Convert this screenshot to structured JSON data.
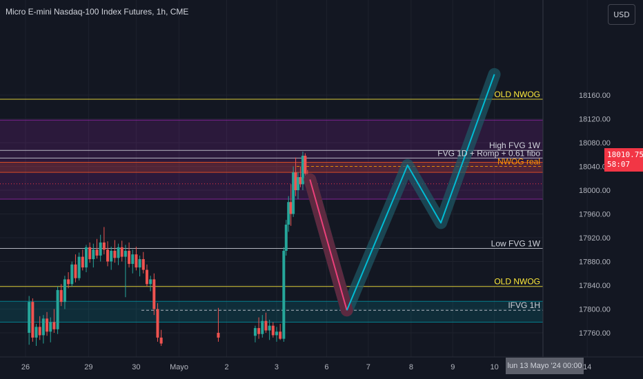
{
  "header": {
    "title": "Micro E-mini Nasdaq-100 Index Futures, 1h, CME"
  },
  "toolbar": {
    "currency_label": "USD"
  },
  "price_tag": {
    "price": "18010.75",
    "countdown": "58:07"
  },
  "crosshair": {
    "date_label": "lun 13 Mayo '24   00:00"
  },
  "colors": {
    "background": "#131722",
    "up": "#26a69a",
    "down": "#ef5350",
    "projection": "#00bcd4",
    "zone_purple": "#9c27b0",
    "zone_teal": "#0097a7",
    "price_tag": "#f23645",
    "nwog_label": "#ffeb3b",
    "nwog_real_label": "#ff9800"
  },
  "chart_data": {
    "type": "candlestick",
    "symbol": "Micro E-mini Nasdaq-100 Index Futures",
    "interval": "1h",
    "exchange": "CME",
    "ylim": [
      17730,
      18190
    ],
    "y_ticks": [
      17760,
      17800,
      17840,
      17880,
      17920,
      17960,
      18000,
      18040,
      18080,
      18120,
      18160
    ],
    "y_tick_labels": [
      "17760.00",
      "17800.00",
      "17840.00",
      "17880.00",
      "17920.00",
      "17960.00",
      "18000.00",
      "18040.00",
      "18080.00",
      "18120.00",
      "18160.00"
    ],
    "x_ticks": [
      {
        "label": "26",
        "t": 0.35
      },
      {
        "label": "29",
        "t": 3.0
      },
      {
        "label": "30",
        "t": 5.0
      },
      {
        "label": "Mayo",
        "t": 6.8
      },
      {
        "label": "2",
        "t": 8.8
      },
      {
        "label": "3",
        "t": 10.9
      },
      {
        "label": "6",
        "t": 13.0
      },
      {
        "label": "7",
        "t": 14.75
      },
      {
        "label": "8",
        "t": 16.55
      },
      {
        "label": "9",
        "t": 18.3
      },
      {
        "label": "10",
        "t": 20.05
      },
      {
        "label": "14",
        "t": 23.95
      }
    ],
    "current_price": 18010.75,
    "levels": [
      {
        "label": "OLD NWOG",
        "price": 18153,
        "color": "#ffeb3b",
        "style": "solid",
        "label_side": "right"
      },
      {
        "label": "High FVG 1W",
        "price": 18067,
        "color": "#d1d4dc",
        "style": "solid",
        "label_side": "right"
      },
      {
        "label": "FVG 1D + Romp + 0.61 fibo",
        "price": 18054,
        "color": "#d1d4dc",
        "style": "solid",
        "label_side": "right"
      },
      {
        "label": "NWOG real",
        "price": 18040,
        "color": "#ff9800",
        "style": "dashed",
        "label_side": "right"
      },
      {
        "label": "Low FVG 1W",
        "price": 17902,
        "color": "#d1d4dc",
        "style": "solid",
        "label_side": "right"
      },
      {
        "label": "OLD NWOG",
        "price": 17838,
        "color": "#ffeb3b",
        "style": "solid",
        "label_side": "right"
      },
      {
        "label": "IFVG 1H",
        "price": 17798,
        "color": "#d1d4dc",
        "style": "dashed",
        "label_side": "right"
      }
    ],
    "zones": [
      {
        "from": 17985,
        "to": 18118,
        "color": "#9c27b0"
      },
      {
        "from": 18030,
        "to": 18047,
        "color": "#ff5722"
      },
      {
        "from": 17778,
        "to": 17813,
        "color": "#0097a7"
      }
    ],
    "projection": [
      {
        "t": 12.3,
        "price": 18018
      },
      {
        "t": 13.85,
        "price": 17798
      },
      {
        "t": 16.4,
        "price": 18042
      },
      {
        "t": 17.8,
        "price": 17945
      },
      {
        "t": 20.05,
        "price": 18195
      }
    ],
    "projection_start_segment_color": "#ec407a",
    "candles": [
      {
        "t": 0.5,
        "o": 17760,
        "h": 17822,
        "l": 17740,
        "c": 17812
      },
      {
        "t": 0.65,
        "o": 17812,
        "h": 17818,
        "l": 17745,
        "c": 17752
      },
      {
        "t": 0.8,
        "o": 17752,
        "h": 17775,
        "l": 17738,
        "c": 17770
      },
      {
        "t": 0.95,
        "o": 17770,
        "h": 17788,
        "l": 17748,
        "c": 17756
      },
      {
        "t": 1.1,
        "o": 17756,
        "h": 17790,
        "l": 17742,
        "c": 17784
      },
      {
        "t": 1.25,
        "o": 17784,
        "h": 17795,
        "l": 17755,
        "c": 17762
      },
      {
        "t": 1.4,
        "o": 17762,
        "h": 17786,
        "l": 17744,
        "c": 17778
      },
      {
        "t": 1.55,
        "o": 17778,
        "h": 17800,
        "l": 17760,
        "c": 17766
      },
      {
        "t": 1.7,
        "o": 17766,
        "h": 17838,
        "l": 17758,
        "c": 17832
      },
      {
        "t": 1.85,
        "o": 17832,
        "h": 17842,
        "l": 17805,
        "c": 17812
      },
      {
        "t": 2.0,
        "o": 17812,
        "h": 17856,
        "l": 17800,
        "c": 17850
      },
      {
        "t": 2.15,
        "o": 17850,
        "h": 17862,
        "l": 17835,
        "c": 17842
      },
      {
        "t": 2.3,
        "o": 17842,
        "h": 17880,
        "l": 17838,
        "c": 17875
      },
      {
        "t": 2.45,
        "o": 17875,
        "h": 17892,
        "l": 17845,
        "c": 17852
      },
      {
        "t": 2.6,
        "o": 17852,
        "h": 17895,
        "l": 17848,
        "c": 17888
      },
      {
        "t": 2.75,
        "o": 17888,
        "h": 17900,
        "l": 17865,
        "c": 17870
      },
      {
        "t": 2.9,
        "o": 17870,
        "h": 17908,
        "l": 17862,
        "c": 17904
      },
      {
        "t": 3.05,
        "o": 17904,
        "h": 17912,
        "l": 17878,
        "c": 17884
      },
      {
        "t": 3.2,
        "o": 17884,
        "h": 17910,
        "l": 17870,
        "c": 17900
      },
      {
        "t": 3.35,
        "o": 17900,
        "h": 17918,
        "l": 17885,
        "c": 17890
      },
      {
        "t": 3.5,
        "o": 17890,
        "h": 17925,
        "l": 17880,
        "c": 17912
      },
      {
        "t": 3.65,
        "o": 17912,
        "h": 17938,
        "l": 17892,
        "c": 17900
      },
      {
        "t": 3.8,
        "o": 17900,
        "h": 17914,
        "l": 17872,
        "c": 17880
      },
      {
        "t": 3.95,
        "o": 17880,
        "h": 17905,
        "l": 17866,
        "c": 17898
      },
      {
        "t": 4.1,
        "o": 17898,
        "h": 17916,
        "l": 17878,
        "c": 17886
      },
      {
        "t": 4.25,
        "o": 17886,
        "h": 17910,
        "l": 17874,
        "c": 17904
      },
      {
        "t": 4.4,
        "o": 17904,
        "h": 17915,
        "l": 17880,
        "c": 17888
      },
      {
        "t": 4.55,
        "o": 17888,
        "h": 17908,
        "l": 17820,
        "c": 17898
      },
      {
        "t": 4.7,
        "o": 17898,
        "h": 17912,
        "l": 17870,
        "c": 17876
      },
      {
        "t": 4.85,
        "o": 17876,
        "h": 17900,
        "l": 17860,
        "c": 17892
      },
      {
        "t": 5.0,
        "o": 17892,
        "h": 17905,
        "l": 17865,
        "c": 17870
      },
      {
        "t": 5.15,
        "o": 17870,
        "h": 17890,
        "l": 17855,
        "c": 17884
      },
      {
        "t": 5.3,
        "o": 17884,
        "h": 17896,
        "l": 17860,
        "c": 17866
      },
      {
        "t": 5.45,
        "o": 17866,
        "h": 17875,
        "l": 17838,
        "c": 17842
      },
      {
        "t": 5.6,
        "o": 17842,
        "h": 17856,
        "l": 17830,
        "c": 17850
      },
      {
        "t": 5.75,
        "o": 17850,
        "h": 17860,
        "l": 17790,
        "c": 17800
      },
      {
        "t": 5.9,
        "o": 17800,
        "h": 17810,
        "l": 17745,
        "c": 17752
      },
      {
        "t": 6.05,
        "o": 17752,
        "h": 17765,
        "l": 17738,
        "c": 17742
      },
      {
        "t": 8.45,
        "o": 17760,
        "h": 17802,
        "l": 17745,
        "c": 17752
      },
      {
        "t": 10.0,
        "o": 17755,
        "h": 17772,
        "l": 17744,
        "c": 17768
      },
      {
        "t": 10.15,
        "o": 17768,
        "h": 17786,
        "l": 17750,
        "c": 17758
      },
      {
        "t": 10.3,
        "o": 17758,
        "h": 17790,
        "l": 17752,
        "c": 17780
      },
      {
        "t": 10.45,
        "o": 17780,
        "h": 17794,
        "l": 17760,
        "c": 17764
      },
      {
        "t": 10.6,
        "o": 17764,
        "h": 17782,
        "l": 17748,
        "c": 17772
      },
      {
        "t": 10.75,
        "o": 17772,
        "h": 17778,
        "l": 17752,
        "c": 17756
      },
      {
        "t": 10.9,
        "o": 17756,
        "h": 17770,
        "l": 17745,
        "c": 17762
      },
      {
        "t": 11.05,
        "o": 17762,
        "h": 17775,
        "l": 17748,
        "c": 17750
      },
      {
        "t": 11.2,
        "o": 17750,
        "h": 17904,
        "l": 17745,
        "c": 17898
      },
      {
        "t": 11.3,
        "o": 17898,
        "h": 17950,
        "l": 17890,
        "c": 17942
      },
      {
        "t": 11.4,
        "o": 17942,
        "h": 17990,
        "l": 17930,
        "c": 17980
      },
      {
        "t": 11.5,
        "o": 17980,
        "h": 18010,
        "l": 17940,
        "c": 17960
      },
      {
        "t": 11.6,
        "o": 17960,
        "h": 18040,
        "l": 17955,
        "c": 18030
      },
      {
        "t": 11.7,
        "o": 18030,
        "h": 18055,
        "l": 17990,
        "c": 18000
      },
      {
        "t": 11.8,
        "o": 18000,
        "h": 18030,
        "l": 17985,
        "c": 18022
      },
      {
        "t": 11.9,
        "o": 18022,
        "h": 18040,
        "l": 18005,
        "c": 18010
      },
      {
        "t": 12.0,
        "o": 18010,
        "h": 18065,
        "l": 18000,
        "c": 18058
      },
      {
        "t": 12.1,
        "o": 18058,
        "h": 18062,
        "l": 18020,
        "c": 18028
      },
      {
        "t": 12.2,
        "o": 18028,
        "h": 18034,
        "l": 18008,
        "c": 18012
      },
      {
        "t": 12.3,
        "o": 18012,
        "h": 18024,
        "l": 18006,
        "c": 18018
      }
    ]
  }
}
